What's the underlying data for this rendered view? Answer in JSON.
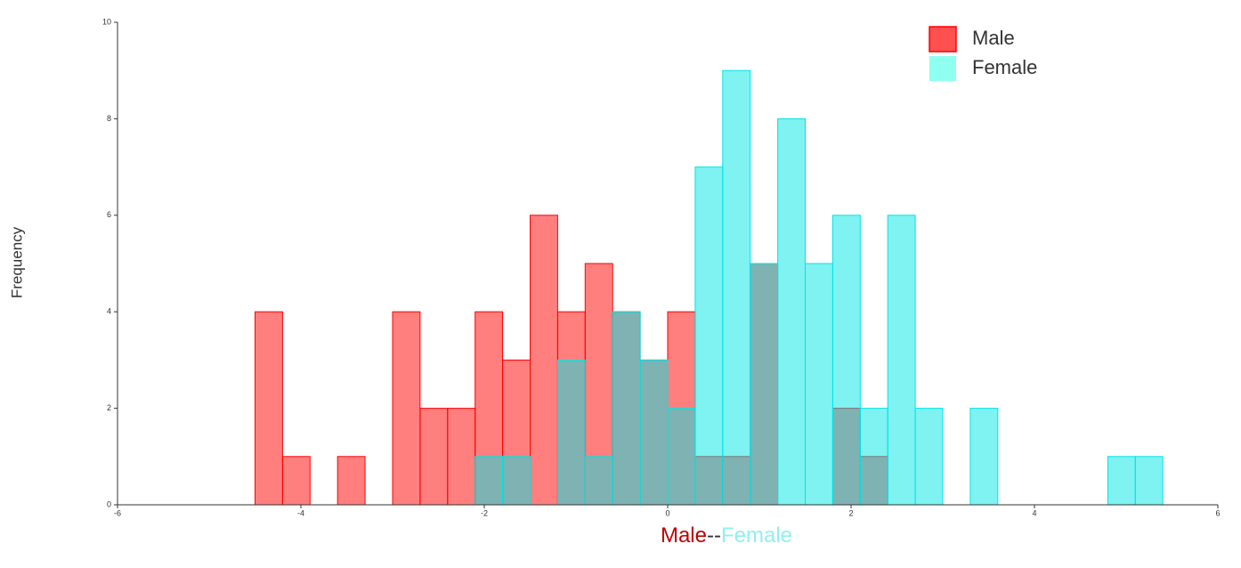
{
  "chart_data": {
    "type": "histogram",
    "ylabel": "Frequency",
    "xlabel_parts": [
      {
        "text": "Male",
        "color": "#c00000"
      },
      {
        "text": "--",
        "color": "#333333"
      },
      {
        "text": "Female",
        "color": "#8ff0f0"
      }
    ],
    "bins": [
      -4.5,
      -4.2,
      -3.9,
      -3.6,
      -3.3,
      -3.0,
      -2.7,
      -2.4,
      -2.1,
      -1.8,
      -1.5,
      -1.2,
      -0.9,
      -0.6,
      -0.3,
      0,
      0.3,
      0.6,
      0.9,
      1.2,
      1.5,
      1.8,
      2.1,
      2.4,
      2.7,
      3.0,
      3.3,
      3.6,
      3.9,
      4.2,
      4.5,
      4.8,
      5.1,
      5.4
    ],
    "series": [
      {
        "name": "Male",
        "color": "#ff0000",
        "legend_color": "#ff5050",
        "values": [
          4,
          1,
          0,
          1,
          0,
          4,
          2,
          2,
          4,
          3,
          6,
          4,
          5,
          4,
          3,
          4,
          1,
          1,
          5,
          0,
          0,
          2,
          1,
          0,
          0,
          0,
          0,
          0,
          0,
          0,
          0,
          0,
          0
        ]
      },
      {
        "name": "Female",
        "color": "#00e5e5",
        "legend_color": "#8ffff0",
        "values": [
          0,
          0,
          0,
          0,
          0,
          0,
          0,
          0,
          1,
          1,
          0,
          3,
          1,
          4,
          3,
          2,
          7,
          9,
          5,
          8,
          5,
          6,
          2,
          6,
          2,
          0,
          2,
          0,
          0,
          0,
          0,
          1,
          1
        ]
      }
    ],
    "xlim": [
      -6,
      6
    ],
    "xticks": [
      -6,
      -4,
      -2,
      0,
      2,
      4,
      6
    ],
    "ylim": [
      0,
      10
    ],
    "yticks": [
      0,
      2,
      4,
      6,
      8,
      10
    ],
    "legend": "top-right"
  }
}
